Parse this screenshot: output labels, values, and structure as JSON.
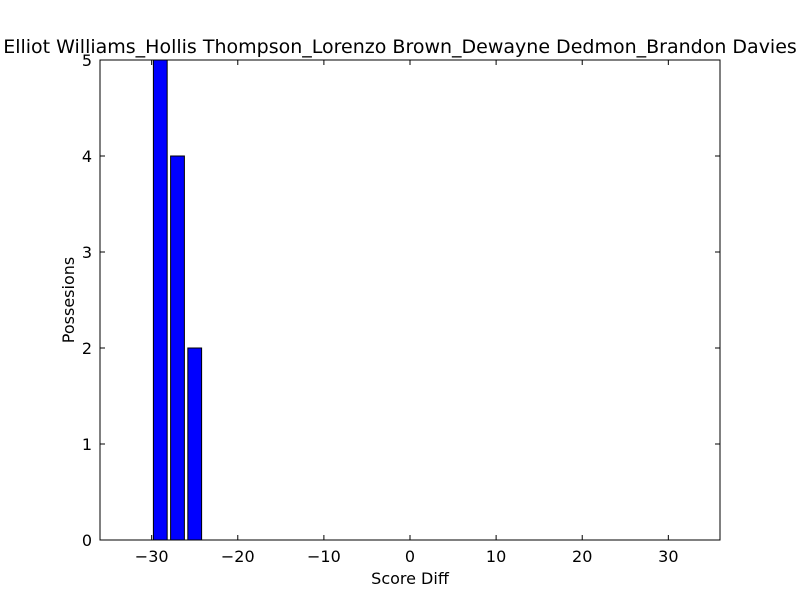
{
  "chart_data": {
    "type": "bar",
    "title": "Elliot Williams_Hollis Thompson_Lorenzo Brown_Dewayne Dedmon_Brandon Davies",
    "xlabel": "Score Diff",
    "ylabel": "Possesions",
    "xlim": [
      -36,
      36
    ],
    "ylim": [
      0,
      5
    ],
    "x_ticks": [
      -30,
      -20,
      -10,
      0,
      10,
      20,
      30
    ],
    "x_tick_labels": [
      "−30",
      "−20",
      "−10",
      "0",
      "10",
      "20",
      "30"
    ],
    "y_ticks": [
      0,
      1,
      2,
      3,
      4,
      5
    ],
    "y_tick_labels": [
      "0",
      "1",
      "2",
      "3",
      "4",
      "5"
    ],
    "bar_width": 1.6,
    "x": [
      -29,
      -27,
      -25
    ],
    "values": [
      5,
      4,
      2
    ],
    "grid": false,
    "legend": "none",
    "bar_color": "#0000ff",
    "edge_color": "#000000"
  }
}
